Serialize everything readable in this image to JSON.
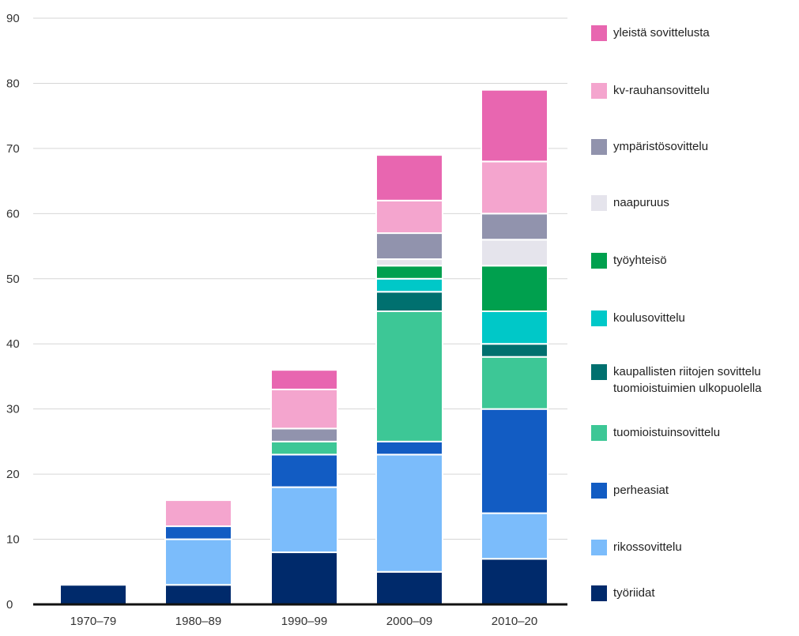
{
  "chart_data": {
    "type": "bar",
    "stacked": true,
    "categories": [
      "1970–79",
      "1980–89",
      "1990–99",
      "2000–09",
      "2010–20"
    ],
    "series": [
      {
        "name": "työriidat",
        "color": "#002a6b",
        "values": [
          3,
          3,
          8,
          5,
          7
        ]
      },
      {
        "name": "rikossovittelu",
        "color": "#7bbcfb",
        "values": [
          0,
          7,
          10,
          18,
          7
        ]
      },
      {
        "name": "perheasiat",
        "color": "#125cc3",
        "values": [
          0,
          2,
          5,
          2,
          16
        ]
      },
      {
        "name": "tuomioistuinsovittelu",
        "color": "#3dc796",
        "values": [
          0,
          0,
          2,
          20,
          8
        ]
      },
      {
        "name": "kaupallisten riitojen sovittelu\ntuomioistuimien ulkopuolella",
        "color": "#00706f",
        "values": [
          0,
          0,
          0,
          3,
          2
        ]
      },
      {
        "name": "koulusovittelu",
        "color": "#00c8c8",
        "values": [
          0,
          0,
          0,
          2,
          5
        ]
      },
      {
        "name": "työyhteisö",
        "color": "#00a04e",
        "values": [
          0,
          0,
          0,
          2,
          7
        ]
      },
      {
        "name": "naapuruus",
        "color": "#e5e4ec",
        "values": [
          0,
          0,
          0,
          1,
          4
        ]
      },
      {
        "name": "ympäristösovittelu",
        "color": "#9193ad",
        "values": [
          0,
          0,
          2,
          4,
          4
        ]
      },
      {
        "name": "kv-rauhansovittelu",
        "color": "#f4a5ce",
        "values": [
          0,
          4,
          6,
          5,
          8
        ]
      },
      {
        "name": "yleistä sovittelusta",
        "color": "#e866b0",
        "values": [
          0,
          0,
          3,
          7,
          11
        ]
      }
    ],
    "yticks": [
      "0",
      "10",
      "20",
      "30",
      "40",
      "50",
      "60",
      "70",
      "80",
      "90"
    ],
    "ylim": [
      0,
      90
    ],
    "title": "",
    "xlabel": "",
    "ylabel": "",
    "grid": true,
    "legend_position": "right"
  }
}
